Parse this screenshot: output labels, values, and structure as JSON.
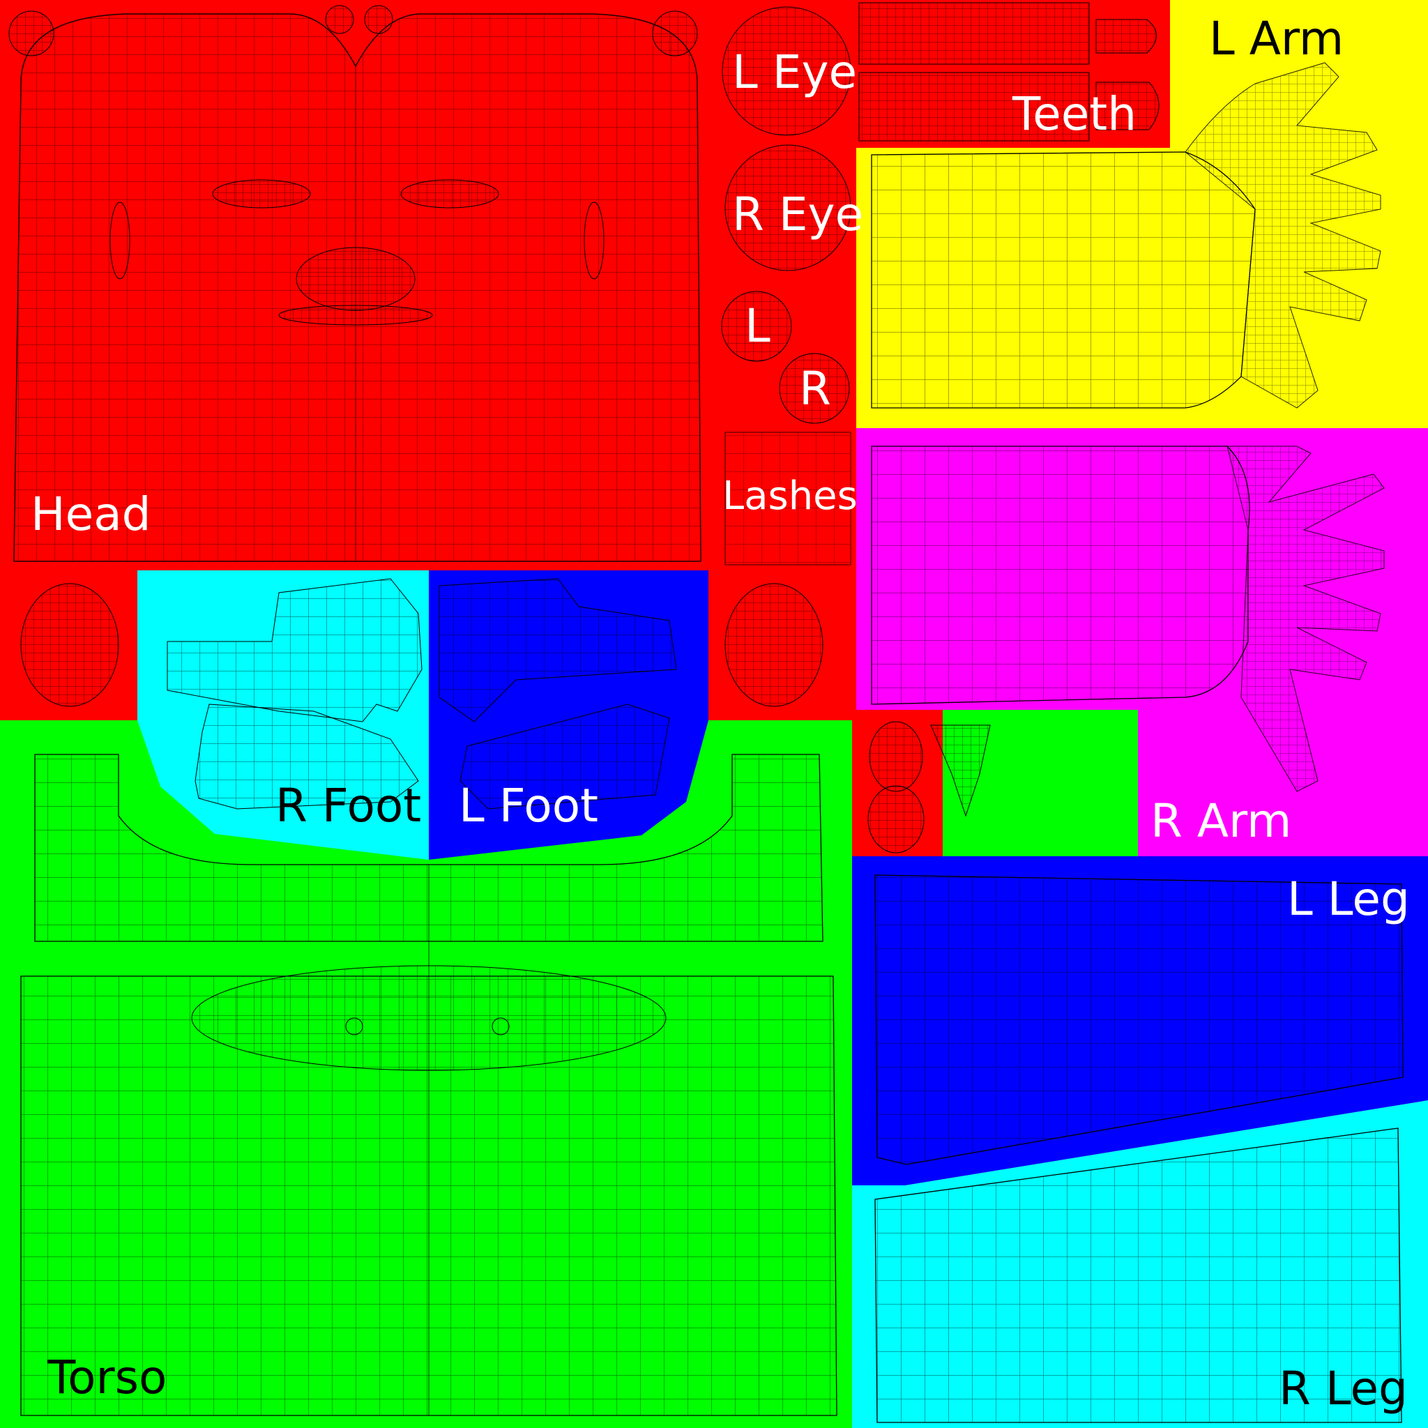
{
  "colors": {
    "red": "#ff0000",
    "green": "#00ff00",
    "yellow": "#ffff00",
    "magenta": "#ff00ff",
    "cyan": "#00ffff",
    "blue": "#0000ff",
    "wire": "#000000",
    "text_light": "#ffffff",
    "text_dark": "#000000"
  },
  "labels": {
    "head": "Head",
    "torso": "Torso",
    "l_eye": "L Eye",
    "r_eye": "R Eye",
    "l": "L",
    "r": "R",
    "lashes": "Lashes",
    "teeth": "Teeth",
    "l_arm": "L Arm",
    "r_arm": "R Arm",
    "l_leg": "L Leg",
    "r_leg": "R Leg",
    "r_foot": "R Foot",
    "l_foot": "L Foot"
  }
}
